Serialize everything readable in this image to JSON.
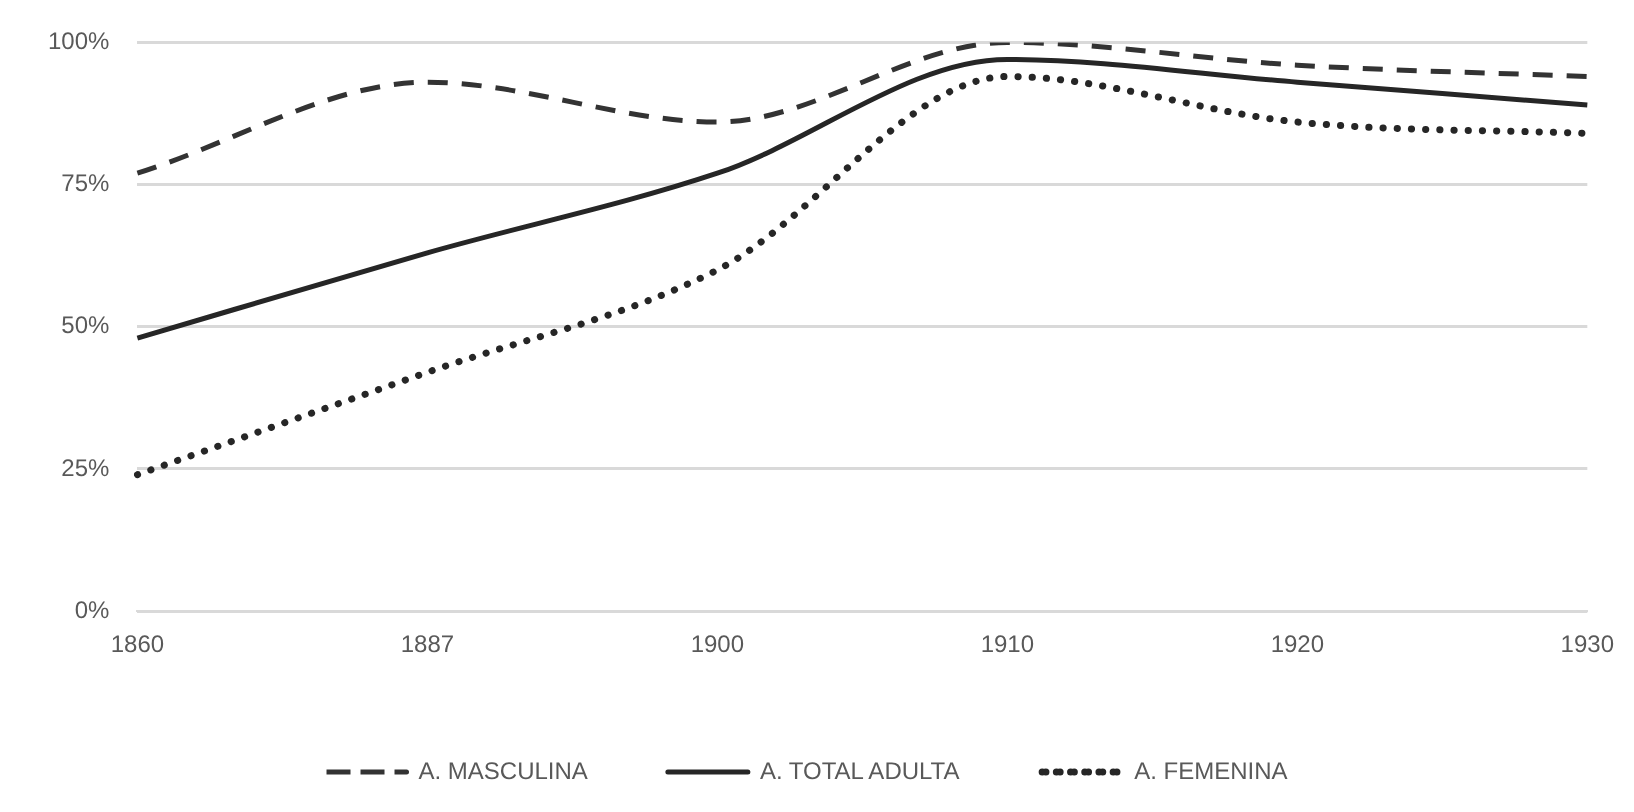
{
  "chart_data": {
    "type": "line",
    "categories": [
      "1860",
      "1887",
      "1900",
      "1910",
      "1920",
      "1930"
    ],
    "series": [
      {
        "name": "A. MASCULINA",
        "color": "#333333",
        "line_style": "dashed",
        "values": [
          77,
          93,
          86,
          100,
          96,
          94
        ]
      },
      {
        "name": "A. TOTAL ADULTA",
        "color": "#262626",
        "line_style": "solid",
        "values": [
          48,
          63,
          77,
          97,
          93,
          89
        ]
      },
      {
        "name": "A. FEMENINA",
        "color": "#262626",
        "line_style": "dotted",
        "values": [
          24,
          42,
          60,
          94,
          86,
          84
        ]
      }
    ],
    "ylim": [
      0,
      100
    ],
    "yticks": [
      {
        "value": 0,
        "label": "0%"
      },
      {
        "value": 25,
        "label": "25%"
      },
      {
        "value": 50,
        "label": "50%"
      },
      {
        "value": 75,
        "label": "75%"
      },
      {
        "value": 100,
        "label": "100%"
      }
    ],
    "grid": "y",
    "legend": "bottom",
    "marker": "none"
  }
}
